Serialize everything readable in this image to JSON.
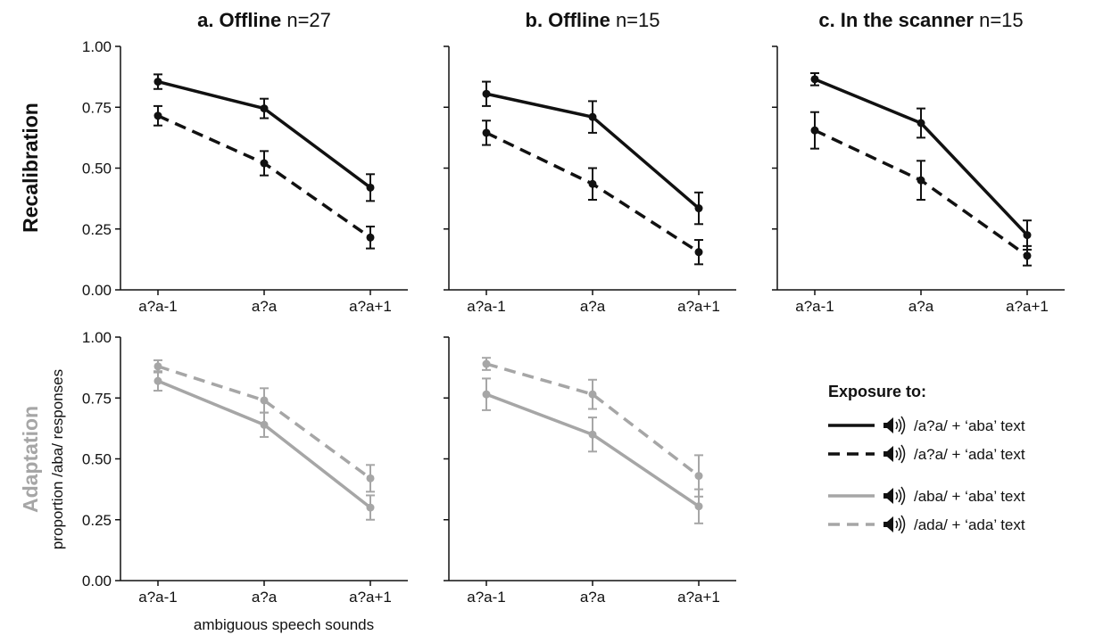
{
  "rows": [
    {
      "label": "Recalibration",
      "color": "#111111"
    },
    {
      "label": "Adaptation",
      "color": "#a6a6a6"
    }
  ],
  "y_axis_label": "proportion /aba/ responses",
  "x_axis_label": "ambiguous speech sounds",
  "legend": {
    "title": "Exposure to:",
    "entries": [
      {
        "label": "/a?a/ + ‘aba’ text",
        "color": "#111111",
        "dashed": false,
        "icon": "speaker-icon"
      },
      {
        "label": "/a?a/ + ‘ada’ text",
        "color": "#111111",
        "dashed": true,
        "icon": "speaker-icon"
      },
      {
        "label": "/aba/ + ‘aba’ text",
        "color": "#a6a6a6",
        "dashed": false,
        "icon": "speaker-icon"
      },
      {
        "label": "/ada/ + ‘ada’ text",
        "color": "#a6a6a6",
        "dashed": true,
        "icon": "speaker-icon"
      }
    ]
  },
  "chart_data": [
    {
      "type": "line",
      "row": 0,
      "col": 0,
      "title_bold": "a. Offline",
      "title_rest": " n=27",
      "categories": [
        "a?a-1",
        "a?a",
        "a?a+1"
      ],
      "ylim": [
        0,
        1
      ],
      "yticks": [
        "0.00",
        "0.25",
        "0.50",
        "0.75",
        "1.00"
      ],
      "series": [
        {
          "values": [
            0.855,
            0.745,
            0.42
          ],
          "errors": [
            0.03,
            0.04,
            0.055
          ],
          "color": "#111111",
          "dashed": false
        },
        {
          "values": [
            0.715,
            0.52,
            0.215
          ],
          "errors": [
            0.04,
            0.05,
            0.045
          ],
          "color": "#111111",
          "dashed": true
        }
      ]
    },
    {
      "type": "line",
      "row": 0,
      "col": 1,
      "title_bold": "b. Offline",
      "title_rest": " n=15",
      "categories": [
        "a?a-1",
        "a?a",
        "a?a+1"
      ],
      "ylim": [
        0,
        1
      ],
      "yticks": [
        "0.00",
        "0.25",
        "0.50",
        "0.75",
        "1.00"
      ],
      "series": [
        {
          "values": [
            0.805,
            0.71,
            0.335
          ],
          "errors": [
            0.05,
            0.065,
            0.065
          ],
          "color": "#111111",
          "dashed": false
        },
        {
          "values": [
            0.645,
            0.435,
            0.155
          ],
          "errors": [
            0.05,
            0.065,
            0.05
          ],
          "color": "#111111",
          "dashed": true
        }
      ]
    },
    {
      "type": "line",
      "row": 0,
      "col": 2,
      "title_bold": "c. In the scanner",
      "title_rest": " n=15",
      "categories": [
        "a?a-1",
        "a?a",
        "a?a+1"
      ],
      "ylim": [
        0,
        1
      ],
      "yticks": [
        "0.00",
        "0.25",
        "0.50",
        "0.75",
        "1.00"
      ],
      "series": [
        {
          "values": [
            0.865,
            0.685,
            0.225
          ],
          "errors": [
            0.025,
            0.06,
            0.06
          ],
          "color": "#111111",
          "dashed": false
        },
        {
          "values": [
            0.655,
            0.45,
            0.14
          ],
          "errors": [
            0.075,
            0.08,
            0.04
          ],
          "color": "#111111",
          "dashed": true
        }
      ]
    },
    {
      "type": "line",
      "row": 1,
      "col": 0,
      "title_bold": "",
      "title_rest": "",
      "categories": [
        "a?a-1",
        "a?a",
        "a?a+1"
      ],
      "ylim": [
        0,
        1
      ],
      "yticks": [
        "0.00",
        "0.25",
        "0.50",
        "0.75",
        "1.00"
      ],
      "series": [
        {
          "values": [
            0.82,
            0.64,
            0.3
          ],
          "errors": [
            0.04,
            0.05,
            0.05
          ],
          "color": "#a6a6a6",
          "dashed": false
        },
        {
          "values": [
            0.88,
            0.74,
            0.42
          ],
          "errors": [
            0.025,
            0.05,
            0.055
          ],
          "color": "#a6a6a6",
          "dashed": true
        }
      ]
    },
    {
      "type": "line",
      "row": 1,
      "col": 1,
      "title_bold": "",
      "title_rest": "",
      "categories": [
        "a?a-1",
        "a?a",
        "a?a+1"
      ],
      "ylim": [
        0,
        1
      ],
      "yticks": [
        "0.00",
        "0.25",
        "0.50",
        "0.75",
        "1.00"
      ],
      "series": [
        {
          "values": [
            0.765,
            0.6,
            0.305
          ],
          "errors": [
            0.065,
            0.07,
            0.07
          ],
          "color": "#a6a6a6",
          "dashed": false
        },
        {
          "values": [
            0.89,
            0.765,
            0.43
          ],
          "errors": [
            0.025,
            0.06,
            0.085
          ],
          "color": "#a6a6a6",
          "dashed": true
        }
      ]
    }
  ]
}
